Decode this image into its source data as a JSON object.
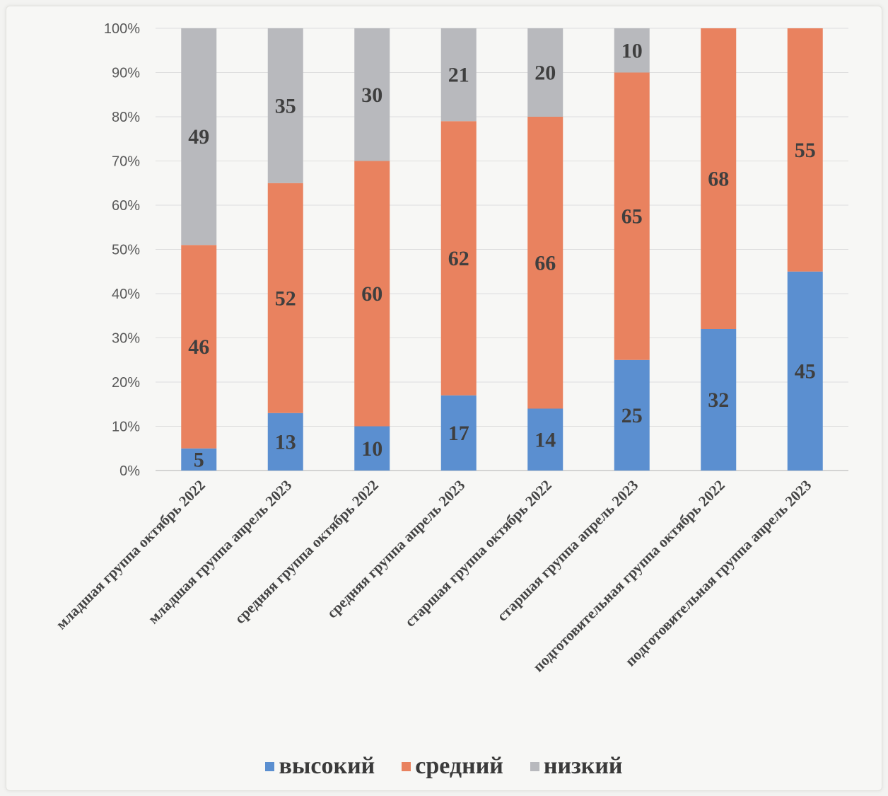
{
  "chart_data": {
    "type": "bar",
    "stacked": true,
    "percent_axis": true,
    "title": "",
    "xlabel": "",
    "ylabel": "",
    "ylim": [
      0,
      100
    ],
    "y_ticks": [
      "0%",
      "10%",
      "20%",
      "30%",
      "40%",
      "50%",
      "60%",
      "70%",
      "80%",
      "90%",
      "100%"
    ],
    "grid": true,
    "legend_position": "bottom",
    "categories": [
      "младшая группа октябрь 2022",
      "младшая группа апрель 2023",
      "средняя группа октябрь 2022",
      "средняя группа апрель 2023",
      "старшая группа октябрь 2022",
      "старшая группа апрель 2023",
      "подготовительная группа октябрь 2022",
      "подготовительная группа апрель 2023"
    ],
    "series": [
      {
        "name": "высокий",
        "color": "#5b8fd0",
        "values": [
          5,
          13,
          10,
          17,
          14,
          25,
          32,
          45
        ]
      },
      {
        "name": "средний",
        "color": "#e9825f",
        "values": [
          46,
          52,
          60,
          62,
          66,
          65,
          68,
          55
        ]
      },
      {
        "name": "низкий",
        "color": "#b8b9bd",
        "values": [
          49,
          35,
          30,
          21,
          20,
          10,
          0,
          0
        ]
      }
    ]
  }
}
